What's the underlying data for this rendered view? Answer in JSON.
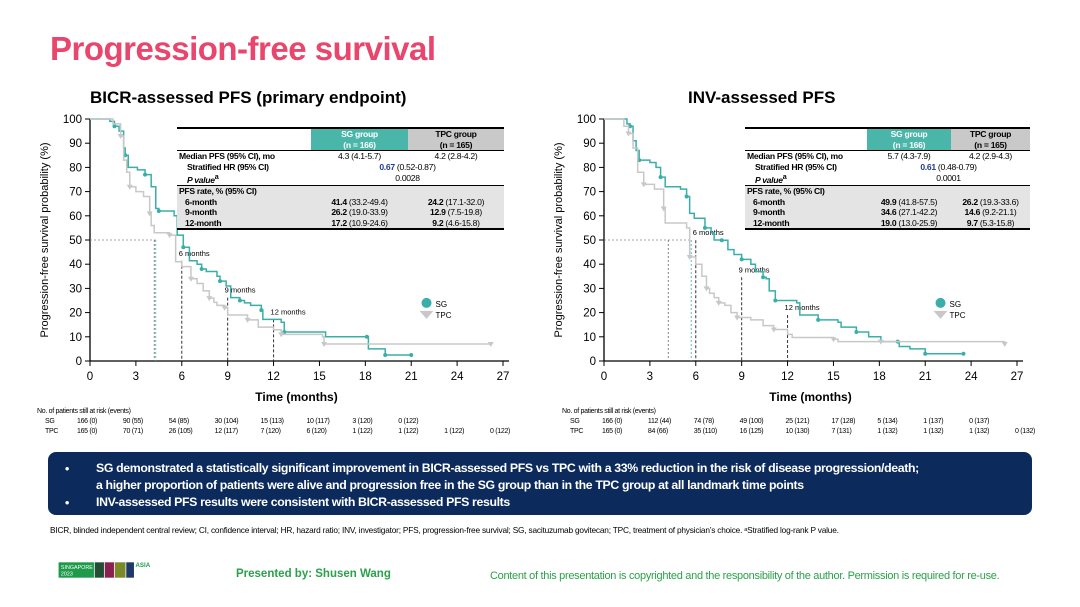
{
  "slide": {
    "title": "Progression-free survival",
    "summary_bullets": [
      [
        "SG demonstrated a statistically significant improvement in BICR-assessed PFS vs TPC with a 33% reduction in the risk of disease progression/death;",
        "a higher proportion of patients were alive and progression free in the SG group than in the TPC group at all landmark time points"
      ],
      [
        "INV-assessed PFS results were consistent with BICR-assessed PFS results"
      ]
    ],
    "bullet_char": "•",
    "footnote": "BICR, blinded independent central review; CI, confidence interval; HR, hazard ratio; INV, investigator; PFS, progression-free survival; SG, sacituzumab govitecan; TPC, treatment of physician’s choice. ᵃStratified log-rank P value.",
    "presenter": "Presented by: Shusen Wang",
    "copyright": "Content of this presentation is copyrighted and the responsibility of the author. Permission is required for re-use.",
    "logo": {
      "line1": "SINGAPORE",
      "line2": "2023",
      "brand": "ESMO",
      "suffix": "ASIA"
    },
    "colors": {
      "title": "#e8466c",
      "sg": "#3aafa9",
      "tpc": "#c8c8c8",
      "box": "#0c2a5b",
      "green": "#2aa14a"
    }
  },
  "chart_data": [
    {
      "type": "line",
      "title": "BICR-assessed PFS (primary endpoint)",
      "xlabel": "Time (months)",
      "ylabel": "Progression-free survival probability (%)",
      "xlim": [
        0,
        27
      ],
      "ylim": [
        0,
        100
      ],
      "xticks": [
        0,
        3,
        6,
        9,
        12,
        15,
        18,
        21,
        24,
        27
      ],
      "yticks": [
        0,
        10,
        20,
        30,
        40,
        50,
        60,
        70,
        80,
        90,
        100
      ],
      "legend": {
        "position": "right",
        "entries": [
          "SG",
          "TPC"
        ]
      },
      "landmarks": [
        {
          "x": 6,
          "y": 41.4,
          "label": "6 months"
        },
        {
          "x": 9,
          "y": 26.2,
          "label": "9 months"
        },
        {
          "x": 12,
          "y": 17.2,
          "label": "12 months"
        }
      ],
      "medians": {
        "SG": 4.3,
        "TPC": 4.2
      },
      "series": [
        {
          "name": "SG",
          "points": [
            [
              0,
              100
            ],
            [
              1,
              100
            ],
            [
              1.3,
              99
            ],
            [
              1.6,
              97
            ],
            [
              1.9,
              95
            ],
            [
              2.2,
              88
            ],
            [
              2.3,
              85
            ],
            [
              2.5,
              80
            ],
            [
              3.1,
              79
            ],
            [
              3.6,
              77
            ],
            [
              4.0,
              72
            ],
            [
              4.3,
              63
            ],
            [
              4.5,
              62
            ],
            [
              5.5,
              60
            ],
            [
              5.7,
              52
            ],
            [
              6.1,
              47
            ],
            [
              6.5,
              41.4
            ],
            [
              7.0,
              40
            ],
            [
              7.3,
              38
            ],
            [
              7.6,
              37
            ],
            [
              8.3,
              35
            ],
            [
              8.5,
              33
            ],
            [
              8.9,
              31
            ],
            [
              9.2,
              26.2
            ],
            [
              9.8,
              25
            ],
            [
              10.1,
              24
            ],
            [
              10.5,
              23
            ],
            [
              11.2,
              21
            ],
            [
              11.3,
              17.2
            ],
            [
              12.5,
              16
            ],
            [
              12.7,
              12
            ],
            [
              15.3,
              12
            ],
            [
              15.4,
              10
            ],
            [
              18.1,
              10
            ],
            [
              18.2,
              5
            ],
            [
              19.2,
              5
            ],
            [
              19.3,
              2.5
            ],
            [
              21,
              2.5
            ]
          ]
        },
        {
          "name": "TPC",
          "points": [
            [
              0,
              100
            ],
            [
              1,
              100
            ],
            [
              1.5,
              98
            ],
            [
              2.0,
              93
            ],
            [
              2.2,
              83
            ],
            [
              2.4,
              78
            ],
            [
              2.6,
              72
            ],
            [
              3.0,
              70
            ],
            [
              3.5,
              68
            ],
            [
              3.9,
              61
            ],
            [
              4.0,
              56
            ],
            [
              4.2,
              53
            ],
            [
              5.2,
              52
            ],
            [
              5.6,
              41
            ],
            [
              6.0,
              39
            ],
            [
              6.6,
              34
            ],
            [
              7.0,
              32
            ],
            [
              7.4,
              29
            ],
            [
              7.8,
              26
            ],
            [
              8.1,
              24.2
            ],
            [
              8.3,
              23
            ],
            [
              8.8,
              22
            ],
            [
              9.0,
              19
            ],
            [
              9.7,
              19
            ],
            [
              10.3,
              17
            ],
            [
              11.0,
              14
            ],
            [
              12.0,
              12.9
            ],
            [
              12.5,
              11
            ],
            [
              12.8,
              11
            ],
            [
              15.2,
              10
            ],
            [
              15.3,
              7
            ],
            [
              18,
              7
            ],
            [
              18.1,
              7
            ],
            [
              26.2,
              7
            ]
          ]
        }
      ],
      "table": {
        "headers": [
          "",
          "SG group\n(n = 166)",
          "TPC group\n(n = 165)"
        ],
        "sg_header": [
          "SG group",
          "(n = 166)"
        ],
        "tpc_header": [
          "TPC group",
          "(n = 165)"
        ],
        "median_label": "Median PFS (95% CI), mo",
        "median_sg": "4.3 (4.1-5.7)",
        "median_tpc": "4.2 (2.8-4.2)",
        "hr_label": "Stratified HR (95% CI)",
        "hr_value": "0.67",
        "hr_ci": " (0.52-0.87)",
        "p_label": "P value",
        "p_sup": "a",
        "p_value": "0.0028",
        "rate_label": "PFS rate, % (95% CI)",
        "rates": [
          {
            "label": "6-month",
            "sg": "41.4",
            "sg_ci": " (33.2-49.4)",
            "tpc": "24.2",
            "tpc_ci": " (17.1-32.0)"
          },
          {
            "label": "9-month",
            "sg": "26.2",
            "sg_ci": " (19.0-33.9)",
            "tpc": "12.9",
            "tpc_ci": " (7.5-19.8)"
          },
          {
            "label": "12-month",
            "sg": "17.2",
            "sg_ci": " (10.9-24.6)",
            "tpc": "9.2",
            "tpc_ci": " (4.6-15.8)"
          }
        ]
      },
      "at_risk": {
        "label": "No. of patients still at risk (events)",
        "rows": [
          {
            "name": "SG",
            "values": [
              "166 (0)",
              "90 (55)",
              "54 (85)",
              "30 (104)",
              "15 (113)",
              "10 (117)",
              "3 (120)",
              "0 (122)"
            ]
          },
          {
            "name": "TPC",
            "values": [
              "165 (0)",
              "70 (71)",
              "26 (105)",
              "12 (117)",
              "7 (120)",
              "6 (120)",
              "1 (122)",
              "1 (122)",
              "1 (122)",
              "0 (122)"
            ]
          }
        ]
      }
    },
    {
      "type": "line",
      "title": "INV-assessed PFS",
      "xlabel": "Time (months)",
      "ylabel": "Progression-free survival probability (%)",
      "xlim": [
        0,
        27
      ],
      "ylim": [
        0,
        100
      ],
      "xticks": [
        0,
        3,
        6,
        9,
        12,
        15,
        18,
        21,
        24,
        27
      ],
      "yticks": [
        0,
        10,
        20,
        30,
        40,
        50,
        60,
        70,
        80,
        90,
        100
      ],
      "legend": {
        "position": "right",
        "entries": [
          "SG",
          "TPC"
        ]
      },
      "landmarks": [
        {
          "x": 6,
          "y": 49.9,
          "label": "6 months"
        },
        {
          "x": 9,
          "y": 34.6,
          "label": "9 months"
        },
        {
          "x": 12,
          "y": 19.0,
          "label": "12 months"
        }
      ],
      "medians": {
        "SG": 5.7,
        "TPC": 4.2
      },
      "series": [
        {
          "name": "SG",
          "points": [
            [
              0,
              100
            ],
            [
              1,
              100
            ],
            [
              1.5,
              98
            ],
            [
              1.7,
              97
            ],
            [
              1.9,
              91
            ],
            [
              2.1,
              87
            ],
            [
              2.3,
              83
            ],
            [
              3.0,
              82
            ],
            [
              3.4,
              80
            ],
            [
              3.7,
              76
            ],
            [
              4.0,
              72
            ],
            [
              5.0,
              71
            ],
            [
              5.4,
              68
            ],
            [
              5.6,
              61
            ],
            [
              5.9,
              59
            ],
            [
              6.6,
              55
            ],
            [
              7.0,
              53
            ],
            [
              7.2,
              50
            ],
            [
              7.7,
              49.9
            ],
            [
              8.1,
              46
            ],
            [
              8.5,
              44
            ],
            [
              9.0,
              42
            ],
            [
              9.6,
              40
            ],
            [
              9.9,
              37
            ],
            [
              10.4,
              34.6
            ],
            [
              10.6,
              34
            ],
            [
              10.8,
              29
            ],
            [
              11.2,
              25
            ],
            [
              12.6,
              24
            ],
            [
              12.8,
              19.0
            ],
            [
              14.0,
              17
            ],
            [
              15.3,
              16
            ],
            [
              15.5,
              14
            ],
            [
              16.5,
              12
            ],
            [
              17.3,
              10
            ],
            [
              18.1,
              8
            ],
            [
              19.2,
              8
            ],
            [
              19.3,
              6
            ],
            [
              20.0,
              5
            ],
            [
              21.0,
              3
            ],
            [
              23.5,
              3
            ]
          ]
        },
        {
          "name": "TPC",
          "points": [
            [
              0,
              100
            ],
            [
              1,
              100
            ],
            [
              1.3,
              97
            ],
            [
              1.6,
              94
            ],
            [
              1.9,
              88
            ],
            [
              2.2,
              78
            ],
            [
              2.6,
              73
            ],
            [
              3.3,
              71
            ],
            [
              3.7,
              71
            ],
            [
              3.9,
              63
            ],
            [
              4.0,
              57
            ],
            [
              5.4,
              55
            ],
            [
              5.6,
              43
            ],
            [
              6.0,
              40
            ],
            [
              6.4,
              35
            ],
            [
              6.7,
              30
            ],
            [
              6.9,
              28
            ],
            [
              7.2,
              26.2
            ],
            [
              7.5,
              24
            ],
            [
              7.9,
              23
            ],
            [
              8.3,
              20
            ],
            [
              8.7,
              18
            ],
            [
              9.6,
              17
            ],
            [
              10.4,
              14.6
            ],
            [
              11.1,
              13
            ],
            [
              12.0,
              11
            ],
            [
              12.3,
              9.7
            ],
            [
              15.0,
              9
            ],
            [
              15.3,
              8
            ],
            [
              18,
              8
            ],
            [
              18.1,
              8
            ],
            [
              26.2,
              7
            ]
          ]
        }
      ],
      "table": {
        "sg_header": [
          "SG group",
          "(n = 166)"
        ],
        "tpc_header": [
          "TPC group",
          "(n = 165)"
        ],
        "median_label": "Median PFS (95% CI), mo",
        "median_sg": "5.7 (4.3-7.9)",
        "median_tpc": "4.2 (2.9-4.3)",
        "hr_label": "Stratified HR (95% CI)",
        "hr_value": "0.61",
        "hr_ci": " (0.48-0.79)",
        "p_label": "P value",
        "p_sup": "a",
        "p_value": "0.0001",
        "rate_label": "PFS rate, % (95% CI)",
        "rates": [
          {
            "label": "6-month",
            "sg": "49.9",
            "sg_ci": " (41.8-57.5)",
            "tpc": "26.2",
            "tpc_ci": " (19.3-33.6)"
          },
          {
            "label": "9-month",
            "sg": "34.6",
            "sg_ci": " (27.1-42.2)",
            "tpc": "14.6",
            "tpc_ci": " (9.2-21.1)"
          },
          {
            "label": "12-month",
            "sg": "19.0",
            "sg_ci": " (13.0-25.9)",
            "tpc": "9.7",
            "tpc_ci": " (5.3-15.8)"
          }
        ]
      },
      "at_risk": {
        "label": "No. of patients still at risk (events)",
        "rows": [
          {
            "name": "SG",
            "values": [
              "166 (0)",
              "112 (44)",
              "74 (78)",
              "49 (100)",
              "25 (121)",
              "17 (128)",
              "5 (134)",
              "1 (137)",
              "0 (137)"
            ]
          },
          {
            "name": "TPC",
            "values": [
              "165 (0)",
              "84 (66)",
              "35 (110)",
              "16 (125)",
              "10 (130)",
              "7 (131)",
              "1 (132)",
              "1 (132)",
              "1 (132)",
              "0 (132)"
            ]
          }
        ]
      }
    }
  ]
}
